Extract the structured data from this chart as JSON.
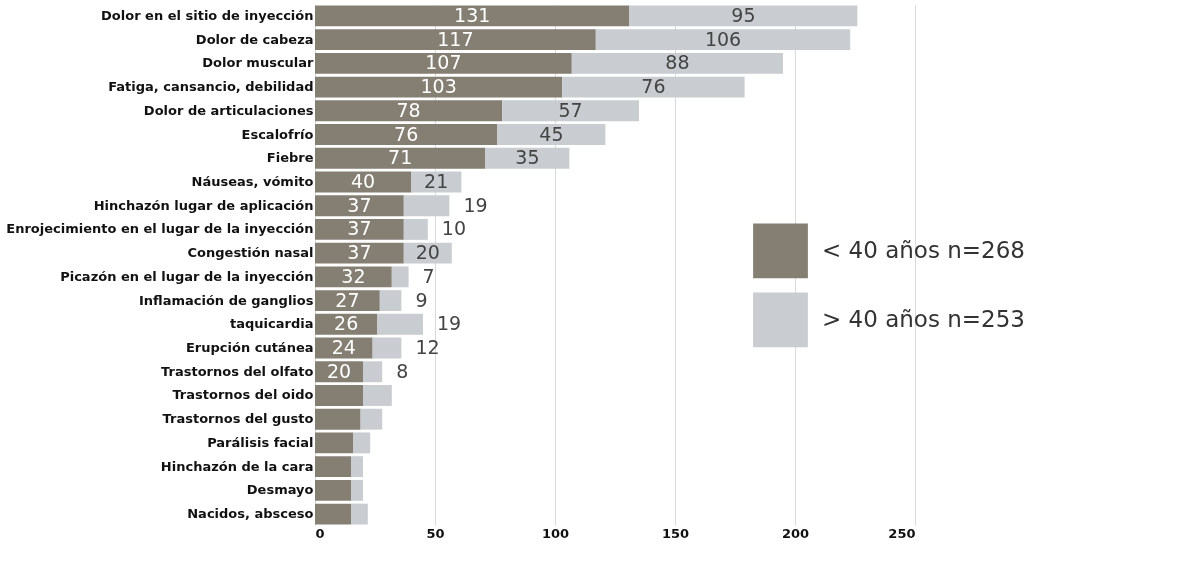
{
  "chart_data": {
    "type": "bar",
    "orientation": "horizontal",
    "stacked": true,
    "categories": [
      "Dolor en el sitio de inyección",
      "Dolor de cabeza",
      "Dolor muscular",
      "Fatiga, cansancio, debilidad",
      "Dolor de articulaciones",
      "Escalofrío",
      "Fiebre",
      "Náuseas, vómito",
      "Hinchazón lugar de aplicación",
      "Enrojecimiento en el lugar de la inyección",
      "Congestión nasal",
      "Picazón en el lugar de la inyección",
      "Inflamación de ganglios",
      "taquicardia",
      "Erupción cutánea",
      "Trastornos del olfato",
      "Trastornos del oido",
      "Trastornos del gusto",
      "Parálisis facial",
      "Hinchazón de la cara",
      "Desmayo",
      "Nacidos, absceso"
    ],
    "series": [
      {
        "name": "< 40 años  n=268",
        "color": "#857f73",
        "values": [
          131,
          117,
          107,
          103,
          78,
          76,
          71,
          40,
          37,
          37,
          37,
          32,
          27,
          26,
          24,
          20,
          20,
          19,
          16,
          15,
          15,
          15
        ],
        "value_labels": [
          "131",
          "117",
          "107",
          "103",
          "78",
          "76",
          "71",
          "40",
          "37",
          "37",
          "37",
          "32",
          "27",
          "26",
          "24",
          "20",
          null,
          null,
          null,
          null,
          null,
          null
        ]
      },
      {
        "name": "> 40 años n=253",
        "color": "#c9ccd0",
        "values": [
          95,
          106,
          88,
          76,
          57,
          45,
          35,
          21,
          19,
          10,
          20,
          7,
          9,
          19,
          12,
          8,
          12,
          9,
          7,
          5,
          5,
          7
        ],
        "value_labels": [
          "95",
          "106",
          "88",
          "76",
          "57",
          "45",
          "35",
          "21",
          "19",
          "10",
          "20",
          "7",
          "9",
          "19",
          "12",
          "8",
          null,
          null,
          null,
          null,
          null,
          null
        ]
      }
    ],
    "xlim": [
      0,
      250
    ],
    "xticks": [
      0,
      50,
      100,
      150,
      200,
      250
    ],
    "grid": "x",
    "legend": "right"
  }
}
